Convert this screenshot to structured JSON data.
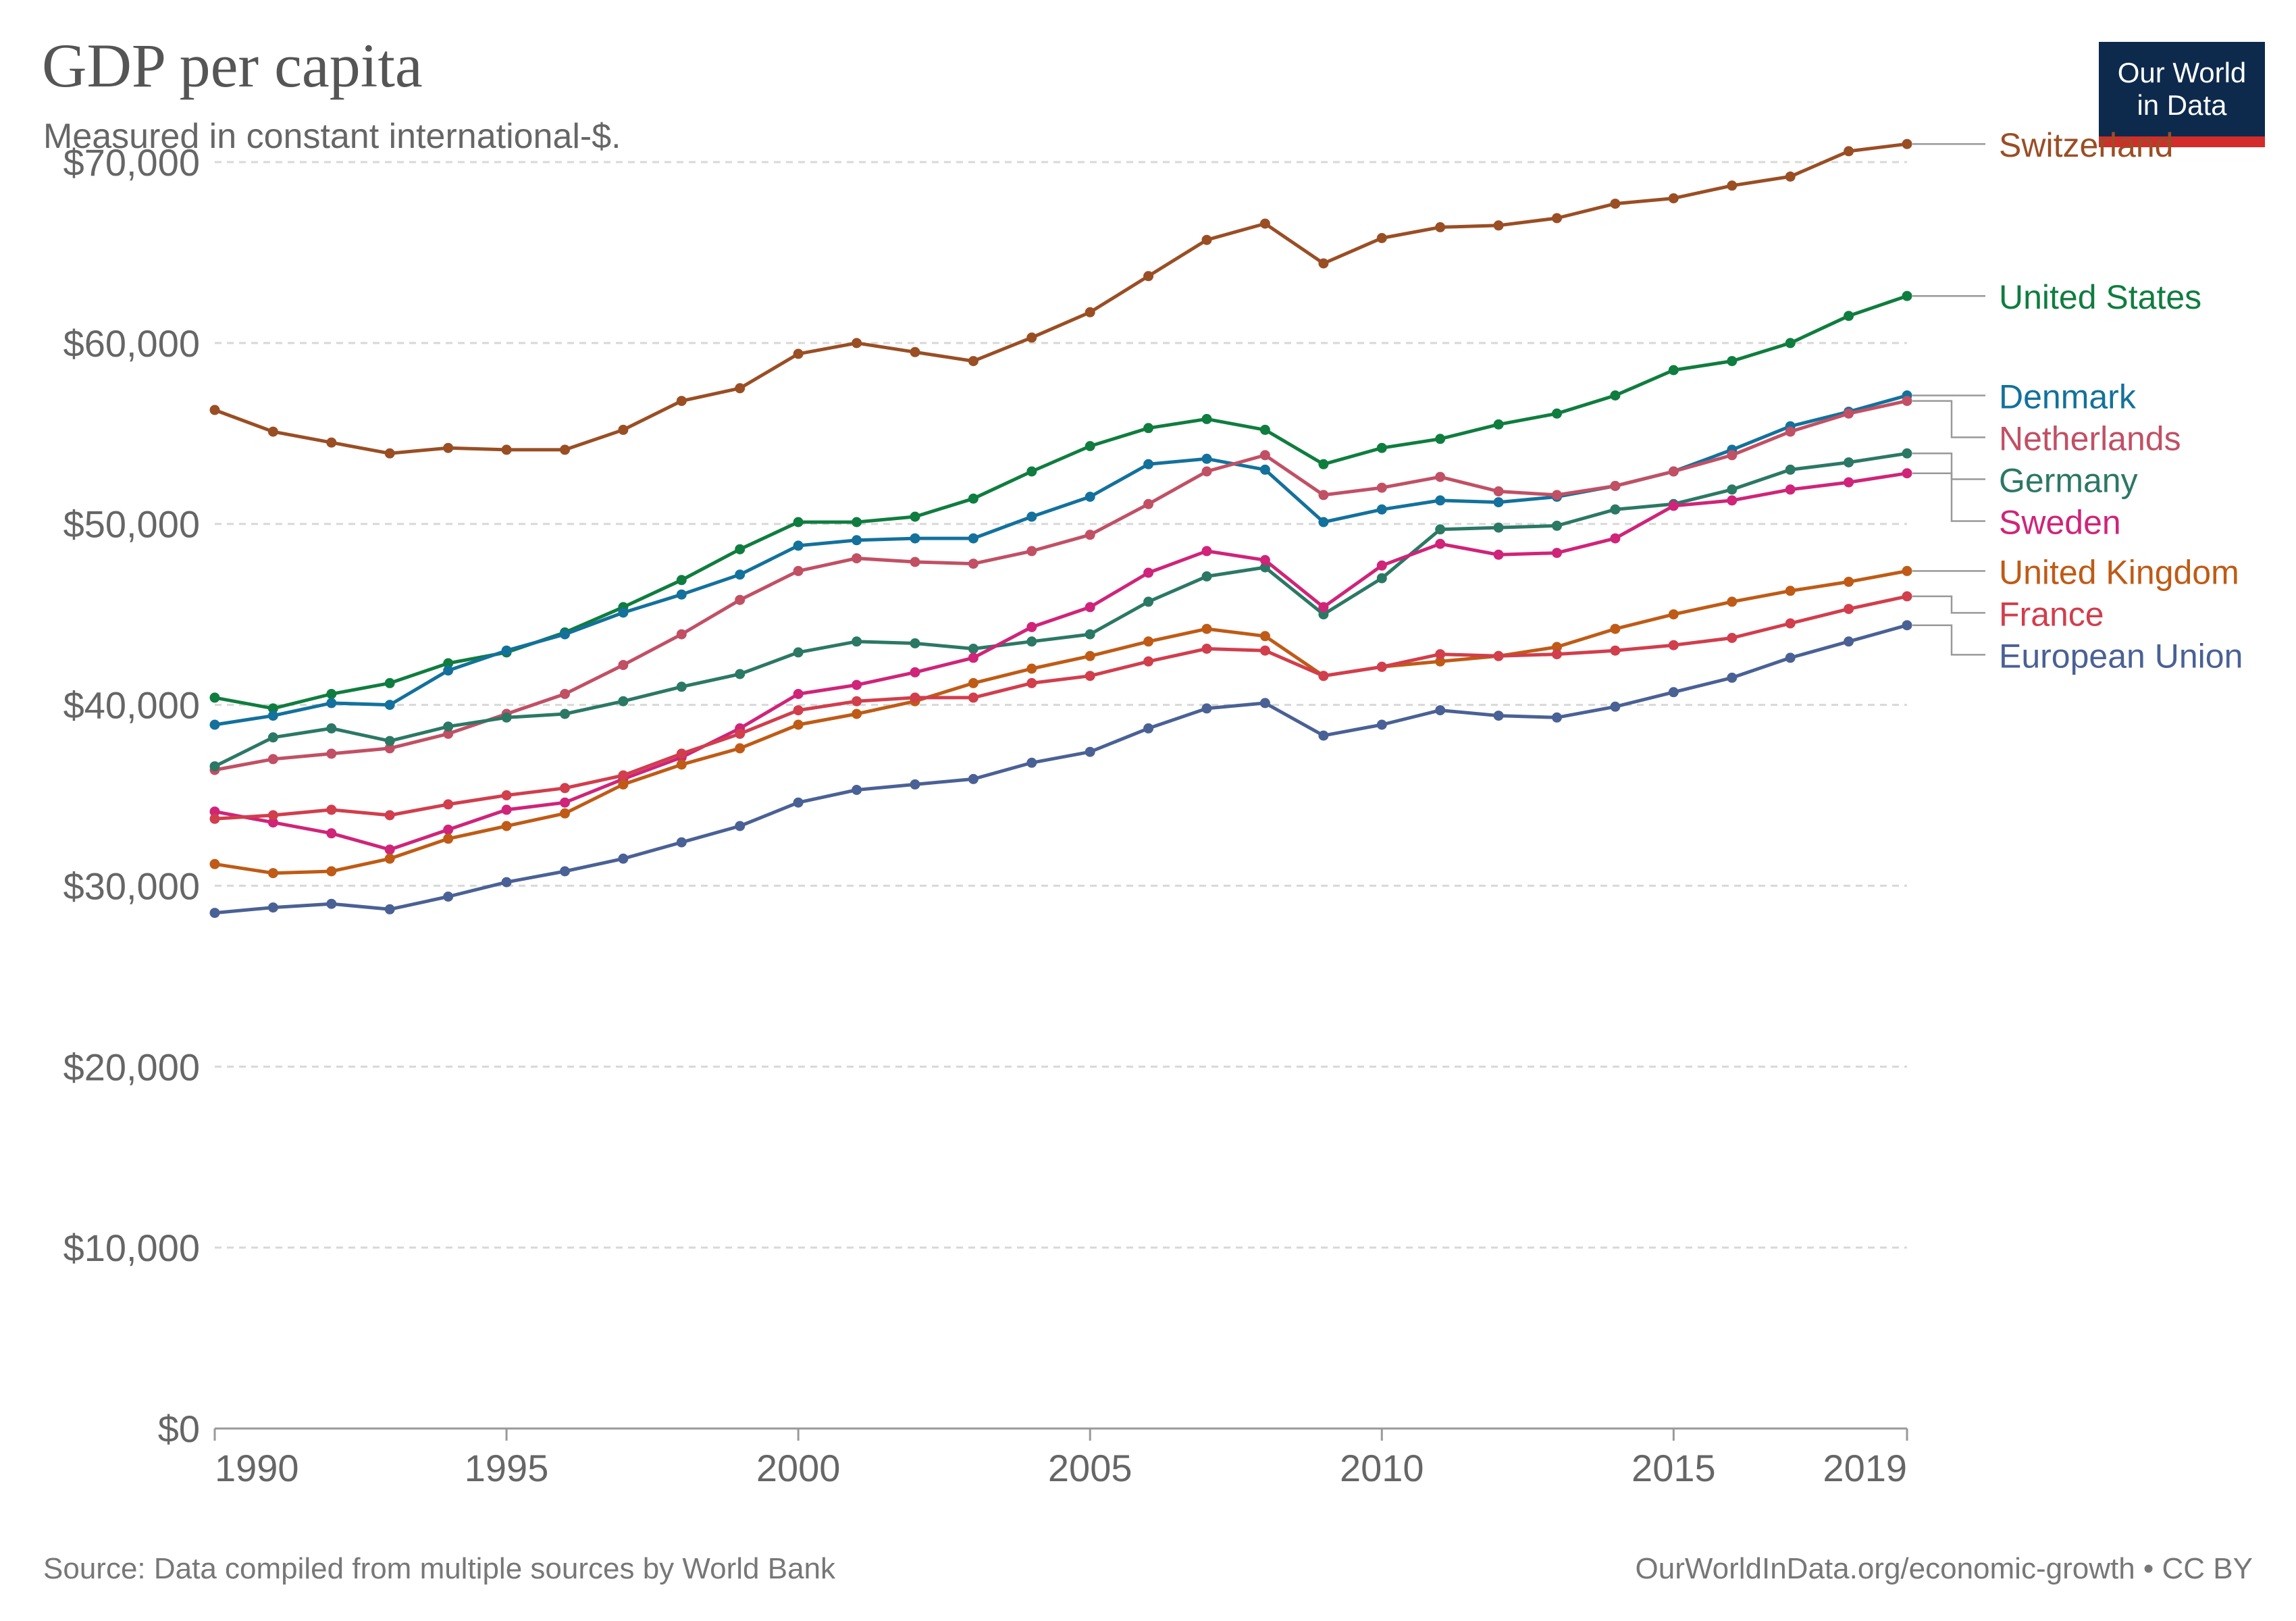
{
  "header": {
    "title": "GDP per capita",
    "subtitle": "Measured in constant international-$."
  },
  "logo": {
    "line1": "Our World",
    "line2": "in Data"
  },
  "footer": {
    "source": "Source: Data compiled from multiple sources by World Bank",
    "license": "OurWorldInData.org/economic-growth • CC BY"
  },
  "chart_data": {
    "type": "line",
    "title": "GDP per capita",
    "subtitle": "Measured in constant international-$.",
    "xlabel": "",
    "ylabel": "",
    "xlim": [
      1990,
      2019
    ],
    "ylim": [
      0,
      70000
    ],
    "grid": true,
    "legend": "right, labels at line ends",
    "y_ticks": [
      0,
      10000,
      20000,
      30000,
      40000,
      50000,
      60000,
      70000
    ],
    "y_tick_labels": [
      "$0",
      "$10,000",
      "$20,000",
      "$30,000",
      "$40,000",
      "$50,000",
      "$60,000",
      "$70,000"
    ],
    "x_ticks": [
      1990,
      1995,
      2000,
      2005,
      2010,
      2015,
      2019
    ],
    "x_tick_labels": [
      "1990",
      "1995",
      "2000",
      "2005",
      "2010",
      "2015",
      "2019"
    ],
    "x": [
      1990,
      1991,
      1992,
      1993,
      1994,
      1995,
      1996,
      1997,
      1998,
      1999,
      2000,
      2001,
      2002,
      2003,
      2004,
      2005,
      2006,
      2007,
      2008,
      2009,
      2010,
      2011,
      2012,
      2013,
      2014,
      2015,
      2016,
      2017,
      2018,
      2019
    ],
    "series": [
      {
        "name": "Switzerland",
        "color": "#9a4e24",
        "values": [
          56300,
          55100,
          54500,
          53900,
          54200,
          54100,
          54100,
          55200,
          56800,
          57500,
          59400,
          60000,
          59500,
          59000,
          60300,
          61700,
          63700,
          65700,
          66600,
          64400,
          65800,
          66400,
          66500,
          66900,
          67700,
          68000,
          68700,
          69200,
          70600,
          71000
        ]
      },
      {
        "name": "United States",
        "color": "#0f7d3f",
        "values": [
          40400,
          39800,
          40600,
          41200,
          42300,
          42900,
          44000,
          45400,
          46900,
          48600,
          50100,
          50100,
          50400,
          51400,
          52900,
          54300,
          55300,
          55800,
          55200,
          53300,
          54200,
          54700,
          55500,
          56100,
          57100,
          58500,
          59000,
          60000,
          61500,
          62600
        ]
      },
      {
        "name": "Denmark",
        "color": "#13719c",
        "values": [
          38900,
          39400,
          40100,
          40000,
          41900,
          43000,
          43900,
          45100,
          46100,
          47200,
          48800,
          49100,
          49200,
          49200,
          50400,
          51500,
          53300,
          53600,
          53000,
          50100,
          50800,
          51300,
          51200,
          51500,
          52100,
          52900,
          54100,
          55400,
          56200,
          57100
        ]
      },
      {
        "name": "Netherlands",
        "color": "#c15065",
        "values": [
          36400,
          37000,
          37300,
          37600,
          38400,
          39500,
          40600,
          42200,
          43900,
          45800,
          47400,
          48100,
          47900,
          47800,
          48500,
          49400,
          51100,
          52900,
          53800,
          51600,
          52000,
          52600,
          51800,
          51600,
          52100,
          52900,
          53800,
          55100,
          56100,
          56800
        ]
      },
      {
        "name": "Germany",
        "color": "#2b7865",
        "values": [
          36600,
          38200,
          38700,
          38000,
          38800,
          39300,
          39500,
          40200,
          41000,
          41700,
          42900,
          43500,
          43400,
          43100,
          43500,
          43900,
          45700,
          47100,
          47600,
          45000,
          47000,
          49700,
          49800,
          49900,
          50800,
          51100,
          51900,
          53000,
          53400,
          53900
        ]
      },
      {
        "name": "Sweden",
        "color": "#cf2479",
        "values": [
          34100,
          33500,
          32900,
          32000,
          33100,
          34200,
          34600,
          35900,
          37100,
          38700,
          40600,
          41100,
          41800,
          42600,
          44300,
          45400,
          47300,
          48500,
          48000,
          45400,
          47700,
          48900,
          48300,
          48400,
          49200,
          51000,
          51300,
          51900,
          52300,
          52800
        ]
      },
      {
        "name": "United Kingdom",
        "color": "#bf5b16",
        "values": [
          31200,
          30700,
          30800,
          31500,
          32600,
          33300,
          34000,
          35600,
          36700,
          37600,
          38900,
          39500,
          40200,
          41200,
          42000,
          42700,
          43500,
          44200,
          43800,
          41600,
          42100,
          42400,
          42700,
          43200,
          44200,
          45000,
          45700,
          46300,
          46800,
          47400
        ]
      },
      {
        "name": "France",
        "color": "#d13e4c",
        "values": [
          33700,
          33900,
          34200,
          33900,
          34500,
          35000,
          35400,
          36100,
          37300,
          38400,
          39700,
          40200,
          40400,
          40400,
          41200,
          41600,
          42400,
          43100,
          43000,
          41600,
          42100,
          42800,
          42700,
          42800,
          43000,
          43300,
          43700,
          44500,
          45300,
          46000
        ]
      },
      {
        "name": "European Union",
        "color": "#4a6195",
        "values": [
          28500,
          28800,
          29000,
          28700,
          29400,
          30200,
          30800,
          31500,
          32400,
          33300,
          34600,
          35300,
          35600,
          35900,
          36800,
          37400,
          38700,
          39800,
          40100,
          38300,
          38900,
          39700,
          39400,
          39300,
          39900,
          40700,
          41500,
          42600,
          43500,
          44400
        ]
      }
    ]
  }
}
